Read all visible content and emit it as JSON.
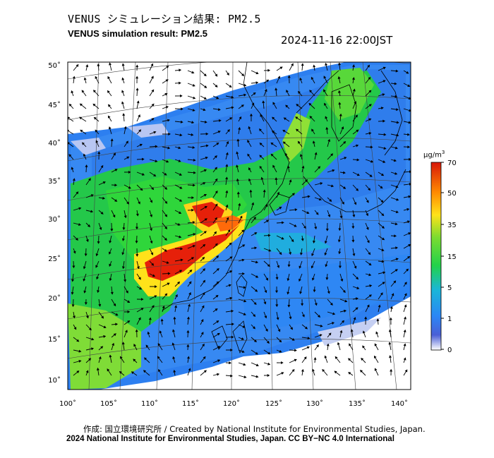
{
  "header": {
    "title_jp": "VENUS シミュレーション結果: PM2.5",
    "title_en": "VENUS simulation result: PM2.5",
    "timestamp": "2024-11-16 22:00JST"
  },
  "map": {
    "lat_labels": [
      "50˚",
      "45˚",
      "40˚",
      "35˚",
      "30˚",
      "25˚",
      "20˚",
      "15˚",
      "10˚"
    ],
    "lon_labels": [
      "100˚",
      "105˚",
      "110˚",
      "115˚",
      "120˚",
      "125˚",
      "130˚",
      "135˚",
      "140˚"
    ],
    "ocean_color": "#ffffff",
    "coast_color": "#000000"
  },
  "colorbar": {
    "unit_prefix": "μg/m",
    "unit_exp": "3",
    "ticks": [
      "70",
      "50",
      "35",
      "15",
      "5",
      "1",
      "0"
    ],
    "stops": [
      "#ffffff",
      "#3a5bd9",
      "#1e90ff",
      "#18c7c7",
      "#27d827",
      "#9be23a",
      "#ffe21a",
      "#ff8a00",
      "#e6200a"
    ]
  },
  "footer": {
    "credit": "作成: 国立環境研究所 / Created by National Institute for Environmental Studies, Japan.",
    "license": "2024 National Institute for Environmental Studies, Japan. CC BY−NC 4.0 International"
  }
}
